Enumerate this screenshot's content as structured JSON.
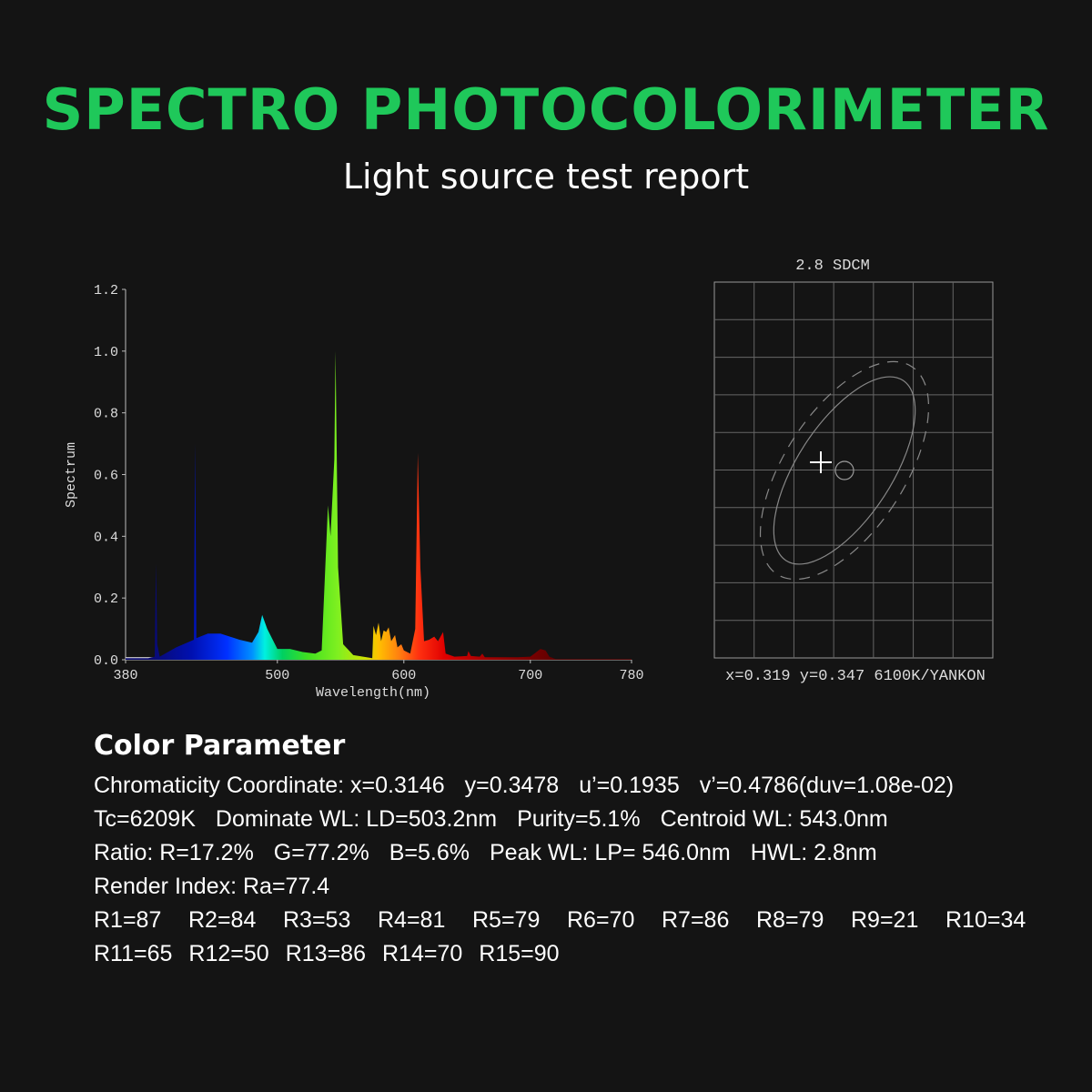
{
  "header": {
    "title": "SPECTRO PHOTOCOLORIMETER",
    "subtitle": "Light source test report",
    "title_color": "#1fc85a"
  },
  "chart_data": [
    {
      "type": "area",
      "xlabel": "Wavelength(nm)",
      "ylabel": "Spectrum",
      "xlim": [
        380,
        780
      ],
      "ylim": [
        0,
        1.2
      ],
      "x_ticks": [
        "380",
        "500",
        "600",
        "700",
        "780"
      ],
      "y_ticks": [
        "0.0",
        "0.2",
        "0.4",
        "0.6",
        "0.8",
        "1.0",
        "1.2"
      ],
      "grid": false,
      "fill": "wavelength rainbow gradient",
      "points": [
        [
          380,
          0.005
        ],
        [
          398,
          0.005
        ],
        [
          403,
          0.01
        ],
        [
          404,
          0.31
        ],
        [
          405,
          0.05
        ],
        [
          407,
          0.01
        ],
        [
          420,
          0.04
        ],
        [
          434,
          0.065
        ],
        [
          435,
          0.7
        ],
        [
          436,
          0.07
        ],
        [
          445,
          0.085
        ],
        [
          455,
          0.085
        ],
        [
          470,
          0.065
        ],
        [
          480,
          0.055
        ],
        [
          485,
          0.09
        ],
        [
          488,
          0.145
        ],
        [
          492,
          0.1
        ],
        [
          500,
          0.035
        ],
        [
          510,
          0.035
        ],
        [
          520,
          0.025
        ],
        [
          530,
          0.02
        ],
        [
          535,
          0.03
        ],
        [
          540,
          0.5
        ],
        [
          542,
          0.4
        ],
        [
          545,
          0.65
        ],
        [
          546,
          1.0
        ],
        [
          548,
          0.3
        ],
        [
          552,
          0.05
        ],
        [
          560,
          0.015
        ],
        [
          575,
          0.005
        ],
        [
          576,
          0.11
        ],
        [
          578,
          0.08
        ],
        [
          580,
          0.12
        ],
        [
          582,
          0.06
        ],
        [
          584,
          0.095
        ],
        [
          586,
          0.09
        ],
        [
          588,
          0.105
        ],
        [
          590,
          0.06
        ],
        [
          593,
          0.08
        ],
        [
          595,
          0.04
        ],
        [
          598,
          0.05
        ],
        [
          600,
          0.03
        ],
        [
          605,
          0.02
        ],
        [
          609,
          0.1
        ],
        [
          611,
          0.67
        ],
        [
          613,
          0.3
        ],
        [
          616,
          0.06
        ],
        [
          620,
          0.065
        ],
        [
          624,
          0.075
        ],
        [
          627,
          0.06
        ],
        [
          631,
          0.09
        ],
        [
          633,
          0.02
        ],
        [
          640,
          0.01
        ],
        [
          650,
          0.012
        ],
        [
          651,
          0.028
        ],
        [
          653,
          0.012
        ],
        [
          660,
          0.01
        ],
        [
          662,
          0.02
        ],
        [
          664,
          0.008
        ],
        [
          690,
          0.008
        ],
        [
          700,
          0.01
        ],
        [
          708,
          0.035
        ],
        [
          712,
          0.03
        ],
        [
          715,
          0.01
        ],
        [
          720,
          0.002
        ],
        [
          780,
          0.002
        ]
      ]
    },
    {
      "type": "scatter",
      "title": "2.8 SDCM",
      "footer": "x=0.319 y=0.347 6100K/YANKON",
      "grid": true,
      "markers": [
        "cross (measured)",
        "circle (target)"
      ],
      "ellipses": [
        "solid",
        "dashed"
      ]
    }
  ],
  "params": {
    "heading": "Color Parameter",
    "lines": [
      [
        "Chromaticity Coordinate: x=0.3146",
        "y=0.3478",
        "u’=0.1935",
        "v’=0.4786(duv=1.08e-02)"
      ],
      [
        "Tc=6209K",
        "Dominate WL: LD=503.2nm",
        "Purity=5.1%",
        "Centroid WL: 543.0nm"
      ],
      [
        "Ratio: R=17.2%",
        "G=77.2%",
        "B=5.6%",
        "Peak WL: LP= 546.0nm",
        "HWL: 2.8nm"
      ],
      [
        "Render Index: Ra=77.4"
      ]
    ],
    "r_values": [
      "R1=87",
      "R2=84",
      "R3=53",
      "R4=81",
      "R5=79",
      "R6=70",
      "R7=86",
      "R8=79",
      "R9=21",
      "R10=34",
      "R11=65",
      "R12=50",
      "R13=86",
      "R14=70",
      "R15=90"
    ]
  }
}
